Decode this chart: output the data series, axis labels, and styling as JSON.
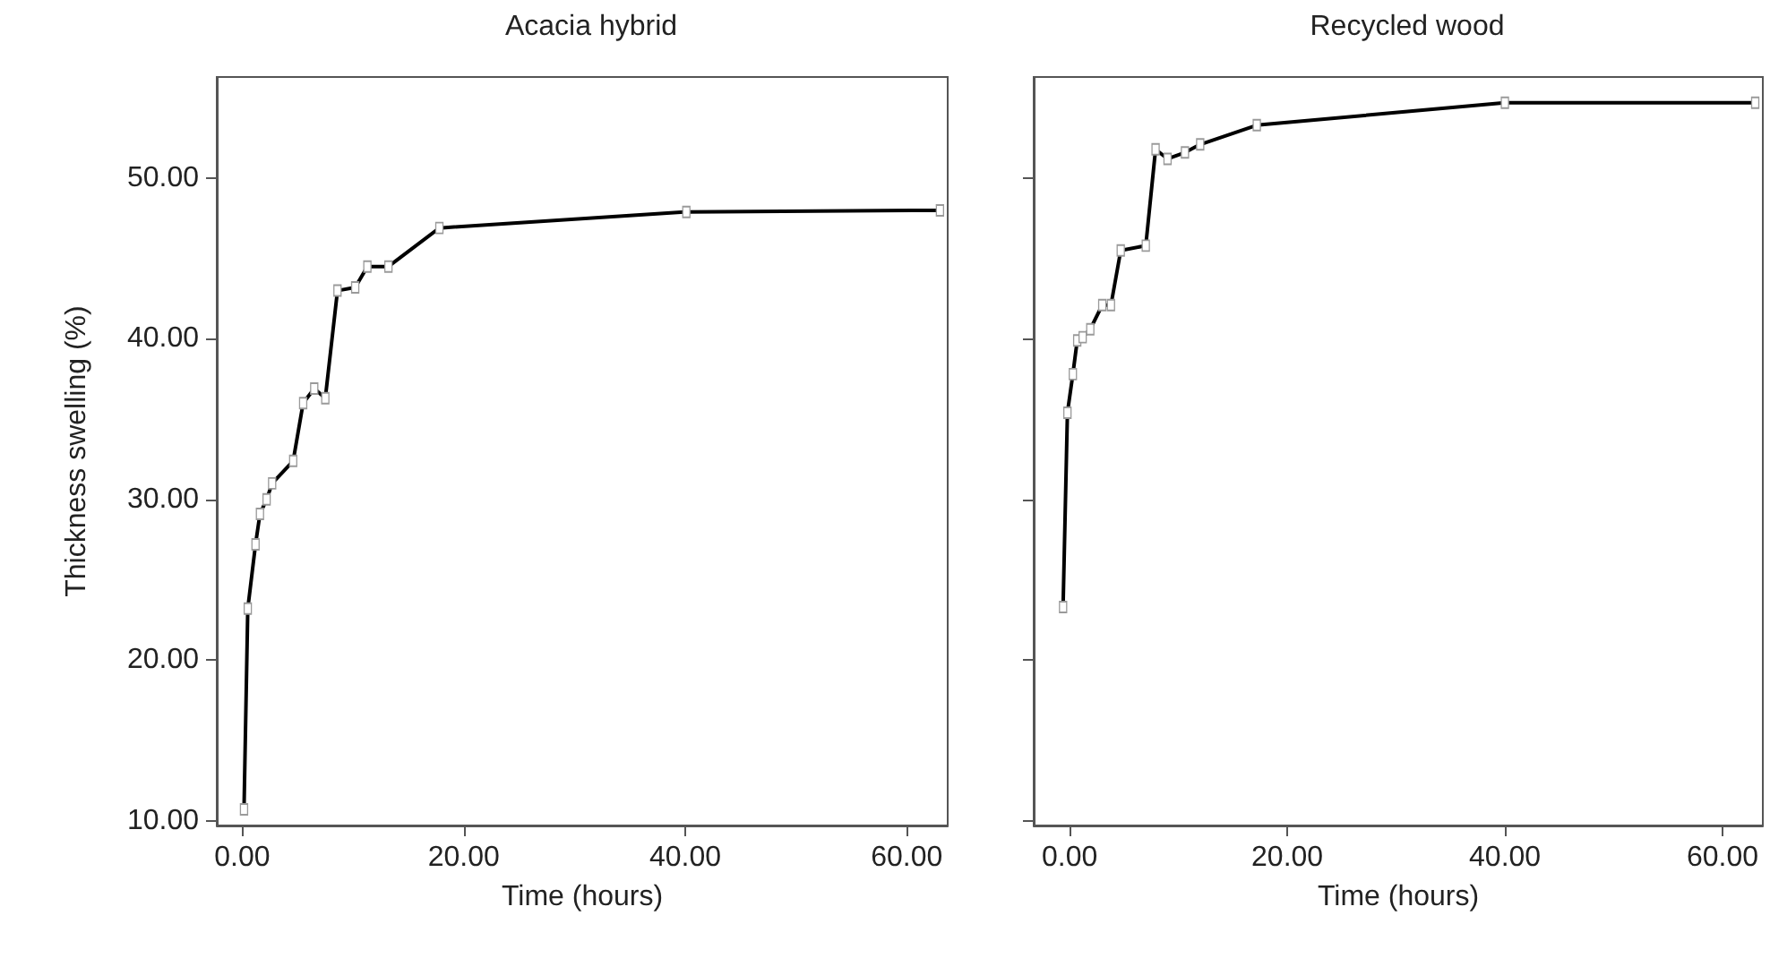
{
  "chart_data": [
    {
      "type": "line",
      "title": "Acacia hybrid",
      "xlabel": "Time (hours)",
      "ylabel": "Thickness swelling (%)",
      "marker": "square",
      "line_style": "solid",
      "series": [
        {
          "color": "#000000",
          "x": [
            0.16,
            0.5,
            1.2,
            1.6,
            2.2,
            2.7,
            4.6,
            5.5,
            6.5,
            7.5,
            8.6,
            10.2,
            11.3,
            13.2,
            17.8,
            40.1,
            63.0
          ],
          "values": [
            10.7,
            23.2,
            27.2,
            29.1,
            30.0,
            31.0,
            32.4,
            36.0,
            36.9,
            36.3,
            43.0,
            43.2,
            44.5,
            44.5,
            46.9,
            47.9,
            48.0
          ]
        }
      ],
      "xlim": [
        -2.3,
        63.7
      ],
      "ylim": [
        9.7,
        56.3
      ],
      "xticks": [
        {
          "value": 0,
          "label": "0.00"
        },
        {
          "value": 20,
          "label": "20.00"
        },
        {
          "value": 40,
          "label": "40.00"
        },
        {
          "value": 60,
          "label": "60.00"
        }
      ],
      "yticks": [
        {
          "value": 10,
          "label": "10.00"
        },
        {
          "value": 20,
          "label": "20.00"
        },
        {
          "value": 30,
          "label": "30.00"
        },
        {
          "value": 40,
          "label": "40.00"
        },
        {
          "value": 50,
          "label": "50.00"
        }
      ]
    },
    {
      "type": "line",
      "title": "Recycled wood",
      "xlabel": "Time (hours)",
      "marker": "square",
      "line_style": "solid",
      "tick_labels": "x",
      "series": [
        {
          "color": "#000000",
          "x": [
            -0.6,
            -0.2,
            0.3,
            0.7,
            1.2,
            1.9,
            3.0,
            3.8,
            4.7,
            7.0,
            7.9,
            9.0,
            10.6,
            12.0,
            17.2,
            40.0,
            63.0
          ],
          "values": [
            23.3,
            35.4,
            37.8,
            39.9,
            40.1,
            40.6,
            42.1,
            42.1,
            45.5,
            45.8,
            51.8,
            51.2,
            51.6,
            52.1,
            53.3,
            54.7,
            54.7
          ]
        }
      ],
      "xlim": [
        -3.3,
        63.7
      ],
      "ylim": [
        9.7,
        56.3
      ],
      "xticks": [
        {
          "value": 0,
          "label": "0.00"
        },
        {
          "value": 20,
          "label": "20.00"
        },
        {
          "value": 40,
          "label": "40.00"
        },
        {
          "value": 60,
          "label": "60.00"
        }
      ],
      "yticks": [
        10,
        20,
        30,
        40,
        50
      ]
    }
  ]
}
